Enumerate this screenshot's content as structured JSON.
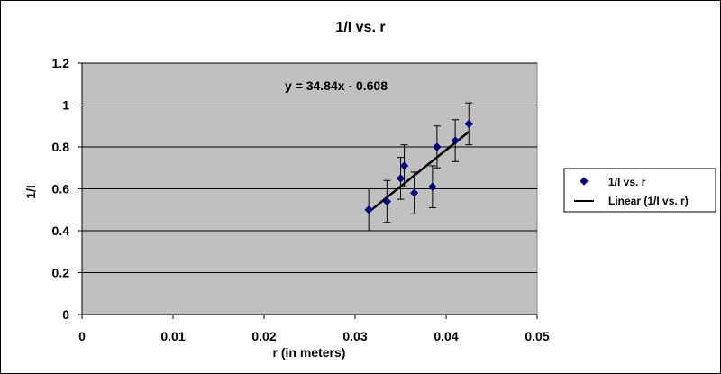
{
  "chart_data": {
    "type": "scatter",
    "title": "1/I vs. r",
    "xlabel": "r (in meters)",
    "ylabel": "1/I",
    "xlim": [
      0,
      0.05
    ],
    "ylim": [
      0,
      1.2
    ],
    "x_ticks": [
      "0",
      "0.01",
      "0.02",
      "0.03",
      "0.04",
      "0.05"
    ],
    "y_ticks": [
      "0",
      "0.2",
      "0.4",
      "0.6",
      "0.8",
      "1",
      "1.2"
    ],
    "x_tick_values": [
      0,
      0.01,
      0.02,
      0.03,
      0.04,
      0.05
    ],
    "y_tick_values": [
      0,
      0.2,
      0.4,
      0.6,
      0.8,
      1.0,
      1.2
    ],
    "grid": "horizontal",
    "legend_position": "right",
    "annotation": "y = 34.84x - 0.608",
    "series": [
      {
        "name": "1/I vs. r",
        "marker": "diamond",
        "color": "#000080",
        "x": [
          0.0315,
          0.0335,
          0.035,
          0.0354,
          0.0365,
          0.0385,
          0.039,
          0.041,
          0.0425
        ],
        "y": [
          0.5,
          0.54,
          0.65,
          0.71,
          0.58,
          0.61,
          0.8,
          0.83,
          0.91
        ],
        "error_y": 0.1
      },
      {
        "name": "Linear (1/I vs. r)",
        "type": "line",
        "color": "#000000",
        "slope": 34.84,
        "intercept": -0.608,
        "x_range": [
          0.0315,
          0.0425
        ]
      }
    ]
  }
}
